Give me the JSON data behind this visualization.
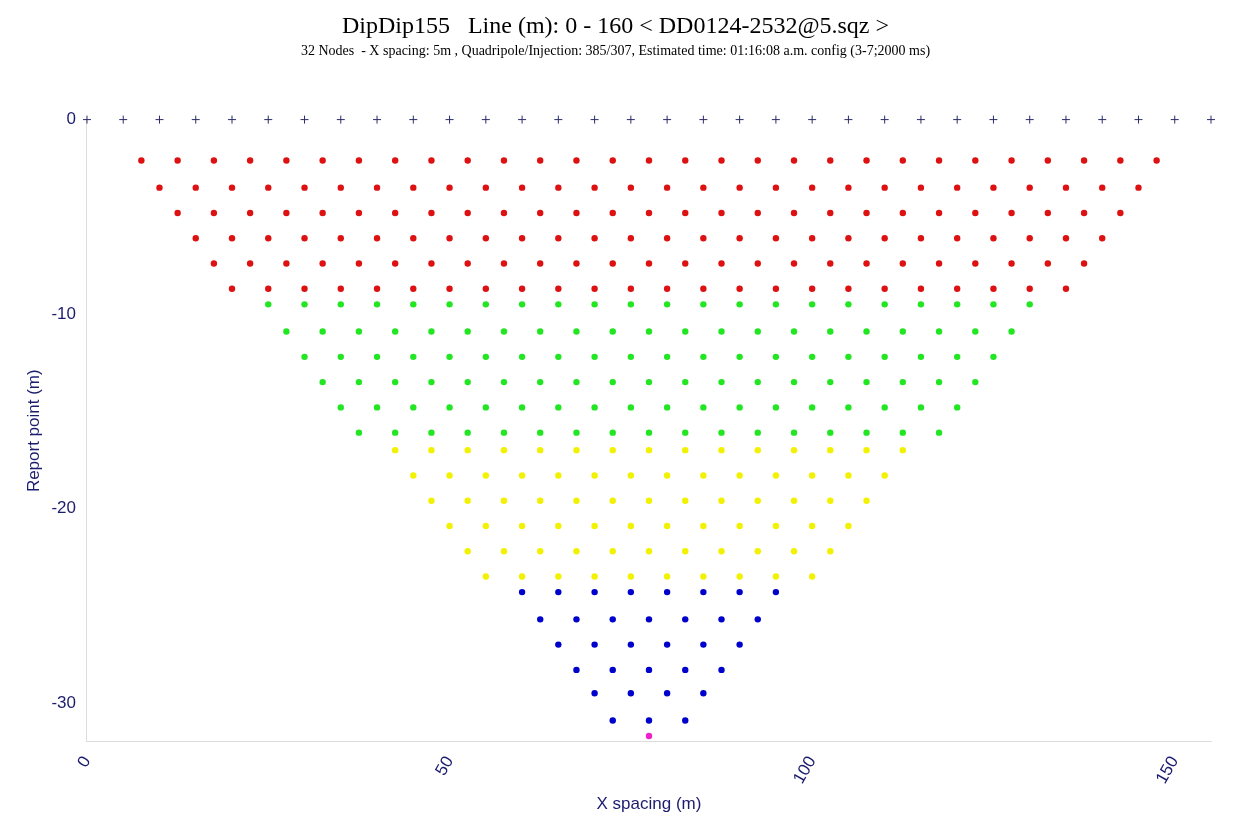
{
  "chart_data": {
    "type": "scatter",
    "title": "DipDip155   Line (m): 0 - 160 < DD0124-2532@5.sqz >",
    "subtitle": "32 Nodes  - X spacing: 5m , Quadripole/Injection: 385/307, Estimated time: 01:16:08 a.m. config (3-7;2000 ms)",
    "xlabel": "X spacing (m)",
    "ylabel": "Report point (m)",
    "xlim": [
      0,
      155
    ],
    "xticks": [
      0,
      50,
      100,
      150
    ],
    "ylim": [
      -32,
      0
    ],
    "yticks": [
      0,
      -10,
      -20,
      -30
    ],
    "grid": false,
    "legend": false,
    "series": [
      {
        "color": "#2b2b6b",
        "marker": "cross",
        "x": [
          0,
          5,
          10,
          15,
          20,
          25,
          30,
          35,
          40,
          45,
          50,
          55,
          60,
          65,
          70,
          75,
          80,
          85,
          90,
          95,
          100,
          105,
          110,
          115,
          120,
          125,
          130,
          135,
          140,
          145,
          150,
          155
        ],
        "values": [
          0,
          0,
          0,
          0,
          0,
          0,
          0,
          0,
          0,
          0,
          0,
          0,
          0,
          0,
          0,
          0,
          0,
          0,
          0,
          0,
          0,
          0,
          0,
          0,
          0,
          0,
          0,
          0,
          0,
          0,
          0,
          0
        ]
      },
      {
        "color": "#dd1111",
        "marker": "circle",
        "x": [
          7.5,
          12.5,
          17.5,
          22.5,
          27.5,
          32.5,
          37.5,
          42.5,
          47.5,
          52.5,
          57.5,
          62.5,
          67.5,
          72.5,
          77.5,
          82.5,
          87.5,
          92.5,
          97.5,
          102.5,
          107.5,
          112.5,
          117.5,
          122.5,
          127.5,
          132.5,
          137.5,
          142.5,
          147.5
        ],
        "values": [
          -2.1,
          -2.1,
          -2.1,
          -2.1,
          -2.1,
          -2.1,
          -2.1,
          -2.1,
          -2.1,
          -2.1,
          -2.1,
          -2.1,
          -2.1,
          -2.1,
          -2.1,
          -2.1,
          -2.1,
          -2.1,
          -2.1,
          -2.1,
          -2.1,
          -2.1,
          -2.1,
          -2.1,
          -2.1,
          -2.1,
          -2.1,
          -2.1,
          -2.1
        ]
      },
      {
        "color": "#dd1111",
        "marker": "circle",
        "x": [
          10,
          15,
          20,
          25,
          30,
          35,
          40,
          45,
          50,
          55,
          60,
          65,
          70,
          75,
          80,
          85,
          90,
          95,
          100,
          105,
          110,
          115,
          120,
          125,
          130,
          135,
          140,
          145
        ],
        "values": [
          -3.5,
          -3.5,
          -3.5,
          -3.5,
          -3.5,
          -3.5,
          -3.5,
          -3.5,
          -3.5,
          -3.5,
          -3.5,
          -3.5,
          -3.5,
          -3.5,
          -3.5,
          -3.5,
          -3.5,
          -3.5,
          -3.5,
          -3.5,
          -3.5,
          -3.5,
          -3.5,
          -3.5,
          -3.5,
          -3.5,
          -3.5,
          -3.5
        ]
      },
      {
        "color": "#dd1111",
        "marker": "circle",
        "x": [
          12.5,
          17.5,
          22.5,
          27.5,
          32.5,
          37.5,
          42.5,
          47.5,
          52.5,
          57.5,
          62.5,
          67.5,
          72.5,
          77.5,
          82.5,
          87.5,
          92.5,
          97.5,
          102.5,
          107.5,
          112.5,
          117.5,
          122.5,
          127.5,
          132.5,
          137.5,
          142.5
        ],
        "values": [
          -4.8,
          -4.8,
          -4.8,
          -4.8,
          -4.8,
          -4.8,
          -4.8,
          -4.8,
          -4.8,
          -4.8,
          -4.8,
          -4.8,
          -4.8,
          -4.8,
          -4.8,
          -4.8,
          -4.8,
          -4.8,
          -4.8,
          -4.8,
          -4.8,
          -4.8,
          -4.8,
          -4.8,
          -4.8,
          -4.8,
          -4.8
        ]
      },
      {
        "color": "#dd1111",
        "marker": "circle",
        "x": [
          15,
          20,
          25,
          30,
          35,
          40,
          45,
          50,
          55,
          60,
          65,
          70,
          75,
          80,
          85,
          90,
          95,
          100,
          105,
          110,
          115,
          120,
          125,
          130,
          135,
          140
        ],
        "values": [
          -6.1,
          -6.1,
          -6.1,
          -6.1,
          -6.1,
          -6.1,
          -6.1,
          -6.1,
          -6.1,
          -6.1,
          -6.1,
          -6.1,
          -6.1,
          -6.1,
          -6.1,
          -6.1,
          -6.1,
          -6.1,
          -6.1,
          -6.1,
          -6.1,
          -6.1,
          -6.1,
          -6.1,
          -6.1,
          -6.1
        ]
      },
      {
        "color": "#dd1111",
        "marker": "circle",
        "x": [
          17.5,
          22.5,
          27.5,
          32.5,
          37.5,
          42.5,
          47.5,
          52.5,
          57.5,
          62.5,
          67.5,
          72.5,
          77.5,
          82.5,
          87.5,
          92.5,
          97.5,
          102.5,
          107.5,
          112.5,
          117.5,
          122.5,
          127.5,
          132.5,
          137.5
        ],
        "values": [
          -7.4,
          -7.4,
          -7.4,
          -7.4,
          -7.4,
          -7.4,
          -7.4,
          -7.4,
          -7.4,
          -7.4,
          -7.4,
          -7.4,
          -7.4,
          -7.4,
          -7.4,
          -7.4,
          -7.4,
          -7.4,
          -7.4,
          -7.4,
          -7.4,
          -7.4,
          -7.4,
          -7.4,
          -7.4
        ]
      },
      {
        "color": "#dd1111",
        "marker": "circle",
        "x": [
          20,
          25,
          30,
          35,
          40,
          45,
          50,
          55,
          60,
          65,
          70,
          75,
          80,
          85,
          90,
          95,
          100,
          105,
          110,
          115,
          120,
          125,
          130,
          135
        ],
        "values": [
          -8.7,
          -8.7,
          -8.7,
          -8.7,
          -8.7,
          -8.7,
          -8.7,
          -8.7,
          -8.7,
          -8.7,
          -8.7,
          -8.7,
          -8.7,
          -8.7,
          -8.7,
          -8.7,
          -8.7,
          -8.7,
          -8.7,
          -8.7,
          -8.7,
          -8.7,
          -8.7,
          -8.7
        ]
      },
      {
        "color": "#22e622",
        "marker": "circle",
        "x": [
          25,
          30,
          35,
          40,
          45,
          50,
          55,
          60,
          65,
          70,
          75,
          80,
          85,
          90,
          95,
          100,
          105,
          110,
          115,
          120,
          125,
          130
        ],
        "values": [
          -9.5,
          -9.5,
          -9.5,
          -9.5,
          -9.5,
          -9.5,
          -9.5,
          -9.5,
          -9.5,
          -9.5,
          -9.5,
          -9.5,
          -9.5,
          -9.5,
          -9.5,
          -9.5,
          -9.5,
          -9.5,
          -9.5,
          -9.5,
          -9.5,
          -9.5
        ]
      },
      {
        "color": "#22e622",
        "marker": "circle",
        "x": [
          27.5,
          32.5,
          37.5,
          42.5,
          47.5,
          52.5,
          57.5,
          62.5,
          67.5,
          72.5,
          77.5,
          82.5,
          87.5,
          92.5,
          97.5,
          102.5,
          107.5,
          112.5,
          117.5,
          122.5,
          127.5
        ],
        "values": [
          -10.9,
          -10.9,
          -10.9,
          -10.9,
          -10.9,
          -10.9,
          -10.9,
          -10.9,
          -10.9,
          -10.9,
          -10.9,
          -10.9,
          -10.9,
          -10.9,
          -10.9,
          -10.9,
          -10.9,
          -10.9,
          -10.9,
          -10.9,
          -10.9
        ]
      },
      {
        "color": "#22e622",
        "marker": "circle",
        "x": [
          30,
          35,
          40,
          45,
          50,
          55,
          60,
          65,
          70,
          75,
          80,
          85,
          90,
          95,
          100,
          105,
          110,
          115,
          120,
          125
        ],
        "values": [
          -12.2,
          -12.2,
          -12.2,
          -12.2,
          -12.2,
          -12.2,
          -12.2,
          -12.2,
          -12.2,
          -12.2,
          -12.2,
          -12.2,
          -12.2,
          -12.2,
          -12.2,
          -12.2,
          -12.2,
          -12.2,
          -12.2,
          -12.2
        ]
      },
      {
        "color": "#22e622",
        "marker": "circle",
        "x": [
          32.5,
          37.5,
          42.5,
          47.5,
          52.5,
          57.5,
          62.5,
          67.5,
          72.5,
          77.5,
          82.5,
          87.5,
          92.5,
          97.5,
          102.5,
          107.5,
          112.5,
          117.5,
          122.5
        ],
        "values": [
          -13.5,
          -13.5,
          -13.5,
          -13.5,
          -13.5,
          -13.5,
          -13.5,
          -13.5,
          -13.5,
          -13.5,
          -13.5,
          -13.5,
          -13.5,
          -13.5,
          -13.5,
          -13.5,
          -13.5,
          -13.5,
          -13.5
        ]
      },
      {
        "color": "#22e622",
        "marker": "circle",
        "x": [
          35,
          40,
          45,
          50,
          55,
          60,
          65,
          70,
          75,
          80,
          85,
          90,
          95,
          100,
          105,
          110,
          115,
          120
        ],
        "values": [
          -14.8,
          -14.8,
          -14.8,
          -14.8,
          -14.8,
          -14.8,
          -14.8,
          -14.8,
          -14.8,
          -14.8,
          -14.8,
          -14.8,
          -14.8,
          -14.8,
          -14.8,
          -14.8,
          -14.8,
          -14.8
        ]
      },
      {
        "color": "#22e622",
        "marker": "circle",
        "x": [
          37.5,
          42.5,
          47.5,
          52.5,
          57.5,
          62.5,
          67.5,
          72.5,
          77.5,
          82.5,
          87.5,
          92.5,
          97.5,
          102.5,
          107.5,
          112.5,
          117.5
        ],
        "values": [
          -16.1,
          -16.1,
          -16.1,
          -16.1,
          -16.1,
          -16.1,
          -16.1,
          -16.1,
          -16.1,
          -16.1,
          -16.1,
          -16.1,
          -16.1,
          -16.1,
          -16.1,
          -16.1,
          -16.1
        ]
      },
      {
        "color": "#f2f200",
        "marker": "circle",
        "x": [
          42.5,
          47.5,
          52.5,
          57.5,
          62.5,
          67.5,
          72.5,
          77.5,
          82.5,
          87.5,
          92.5,
          97.5,
          102.5,
          107.5,
          112.5
        ],
        "values": [
          -17.0,
          -17.0,
          -17.0,
          -17.0,
          -17.0,
          -17.0,
          -17.0,
          -17.0,
          -17.0,
          -17.0,
          -17.0,
          -17.0,
          -17.0,
          -17.0,
          -17.0
        ]
      },
      {
        "color": "#f2f200",
        "marker": "circle",
        "x": [
          45,
          50,
          55,
          60,
          65,
          70,
          75,
          80,
          85,
          90,
          95,
          100,
          105,
          110
        ],
        "values": [
          -18.3,
          -18.3,
          -18.3,
          -18.3,
          -18.3,
          -18.3,
          -18.3,
          -18.3,
          -18.3,
          -18.3,
          -18.3,
          -18.3,
          -18.3,
          -18.3
        ]
      },
      {
        "color": "#f2f200",
        "marker": "circle",
        "x": [
          47.5,
          52.5,
          57.5,
          62.5,
          67.5,
          72.5,
          77.5,
          82.5,
          87.5,
          92.5,
          97.5,
          102.5,
          107.5
        ],
        "values": [
          -19.6,
          -19.6,
          -19.6,
          -19.6,
          -19.6,
          -19.6,
          -19.6,
          -19.6,
          -19.6,
          -19.6,
          -19.6,
          -19.6,
          -19.6
        ]
      },
      {
        "color": "#f2f200",
        "marker": "circle",
        "x": [
          50,
          55,
          60,
          65,
          70,
          75,
          80,
          85,
          90,
          95,
          100,
          105
        ],
        "values": [
          -20.9,
          -20.9,
          -20.9,
          -20.9,
          -20.9,
          -20.9,
          -20.9,
          -20.9,
          -20.9,
          -20.9,
          -20.9,
          -20.9
        ]
      },
      {
        "color": "#f2f200",
        "marker": "circle",
        "x": [
          52.5,
          57.5,
          62.5,
          67.5,
          72.5,
          77.5,
          82.5,
          87.5,
          92.5,
          97.5,
          102.5
        ],
        "values": [
          -22.2,
          -22.2,
          -22.2,
          -22.2,
          -22.2,
          -22.2,
          -22.2,
          -22.2,
          -22.2,
          -22.2,
          -22.2
        ]
      },
      {
        "color": "#f2f200",
        "marker": "circle",
        "x": [
          55,
          60,
          65,
          70,
          75,
          80,
          85,
          90,
          95,
          100
        ],
        "values": [
          -23.5,
          -23.5,
          -23.5,
          -23.5,
          -23.5,
          -23.5,
          -23.5,
          -23.5,
          -23.5,
          -23.5
        ]
      },
      {
        "color": "#0000cc",
        "marker": "circle",
        "x": [
          60,
          65,
          70,
          75,
          80,
          85,
          90,
          95
        ],
        "values": [
          -24.3,
          -24.3,
          -24.3,
          -24.3,
          -24.3,
          -24.3,
          -24.3,
          -24.3
        ]
      },
      {
        "color": "#0000cc",
        "marker": "circle",
        "x": [
          62.5,
          67.5,
          72.5,
          77.5,
          82.5,
          87.5,
          92.5
        ],
        "values": [
          -25.7,
          -25.7,
          -25.7,
          -25.7,
          -25.7,
          -25.7,
          -25.7
        ]
      },
      {
        "color": "#0000cc",
        "marker": "circle",
        "x": [
          65,
          70,
          75,
          80,
          85,
          90
        ],
        "values": [
          -27.0,
          -27.0,
          -27.0,
          -27.0,
          -27.0,
          -27.0
        ]
      },
      {
        "color": "#0000cc",
        "marker": "circle",
        "x": [
          67.5,
          72.5,
          77.5,
          82.5,
          87.5
        ],
        "values": [
          -28.3,
          -28.3,
          -28.3,
          -28.3,
          -28.3
        ]
      },
      {
        "color": "#0000cc",
        "marker": "circle",
        "x": [
          70,
          75,
          80,
          85
        ],
        "values": [
          -29.5,
          -29.5,
          -29.5,
          -29.5
        ]
      },
      {
        "color": "#0000cc",
        "marker": "circle",
        "x": [
          72.5,
          77.5,
          82.5
        ],
        "values": [
          -30.9,
          -30.9,
          -30.9
        ]
      },
      {
        "color": "#ee22cc",
        "marker": "circle",
        "x": [
          77.5
        ],
        "values": [
          -31.7
        ]
      }
    ]
  }
}
